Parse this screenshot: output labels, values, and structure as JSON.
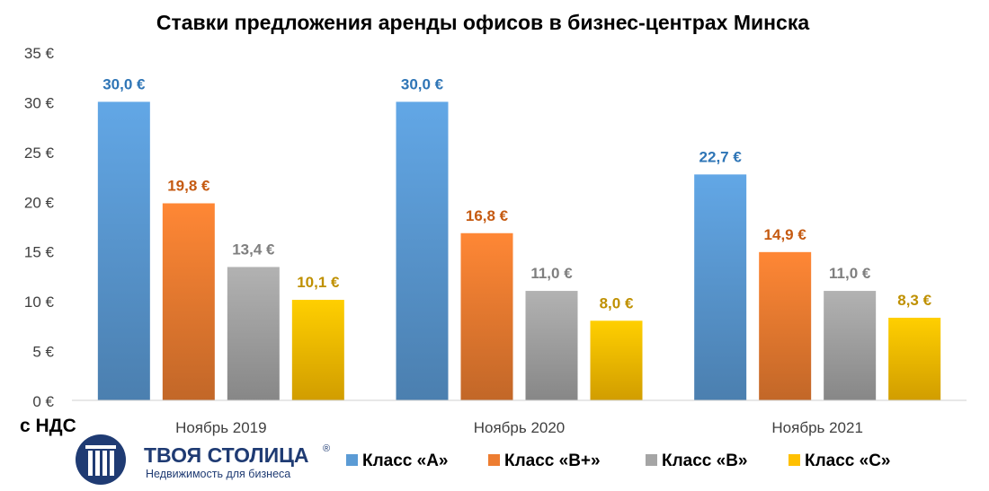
{
  "chart_data": {
    "type": "bar",
    "title": "Ставки предложения аренды офисов в бизнес-центрах Минска",
    "categories": [
      "Ноябрь 2019",
      "Ноябрь 2020",
      "Ноябрь 2021"
    ],
    "series": [
      {
        "name": "Класс «А»",
        "values": [
          30.0,
          30.0,
          22.7
        ],
        "labels": [
          "30,0 €",
          "30,0 €",
          "22,7 €"
        ],
        "color": "#5b9bd5",
        "label_color": "#2e75b6"
      },
      {
        "name": "Класс «В+»",
        "values": [
          19.8,
          16.8,
          14.9
        ],
        "labels": [
          "19,8 €",
          "16,8 €",
          "14,9 €"
        ],
        "color": "#ed7d31",
        "label_color": "#c55a11"
      },
      {
        "name": "Класс «В»",
        "values": [
          13.4,
          11.0,
          11.0
        ],
        "labels": [
          "13,4 €",
          "11,0 €",
          "11,0 €"
        ],
        "color": "#a5a5a5",
        "label_color": "#7f7f7f"
      },
      {
        "name": "Класс «С»",
        "values": [
          10.1,
          8.0,
          8.3
        ],
        "labels": [
          "10,1 €",
          "8,0 €",
          "8,3 €"
        ],
        "color": "#ffc000",
        "label_color": "#bf9000"
      }
    ],
    "y_ticks": [
      {
        "value": 0,
        "label": "0 €"
      },
      {
        "value": 5,
        "label": "5 €"
      },
      {
        "value": 10,
        "label": "10 €"
      },
      {
        "value": 15,
        "label": "15 €"
      },
      {
        "value": 20,
        "label": "20 €"
      },
      {
        "value": 25,
        "label": "25 €"
      },
      {
        "value": 30,
        "label": "30 €"
      },
      {
        "value": 35,
        "label": "35 €"
      }
    ],
    "ylim": [
      0,
      35
    ],
    "grid": false,
    "legend_position": "bottom-right",
    "note": "с НДС"
  },
  "logo": {
    "name": "ТВОЯ СТОЛИЦА",
    "tagline": "Недвижимость для бизнеса",
    "mark": "®",
    "color": "#1f3b73"
  }
}
